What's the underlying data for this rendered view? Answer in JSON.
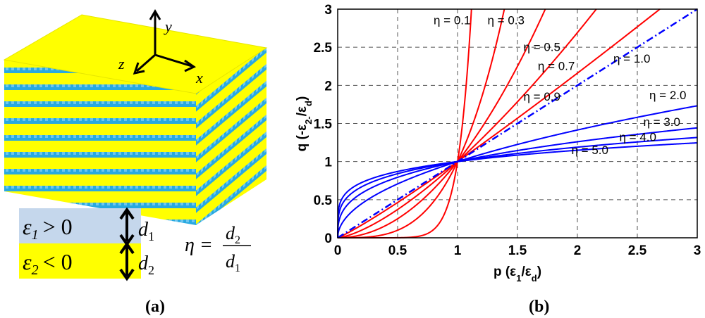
{
  "panel_a": {
    "axes": {
      "y": "y",
      "z": "z",
      "x": "x"
    },
    "layer1": {
      "eps": "ε",
      "sub": "1",
      "rel": "> 0",
      "d": "d",
      "dsub": "1"
    },
    "layer2": {
      "eps": "ε",
      "sub": "2",
      "rel": "< 0",
      "d": "d",
      "dsub": "2"
    },
    "eta": {
      "lhs": "η =",
      "num": "d",
      "num_sub": "2",
      "den": "d",
      "den_sub": "1"
    },
    "label": "(a)",
    "colors": {
      "yellow": "#ffff00",
      "blue": "#29a9e0",
      "light_blue": "#c5d7ec"
    }
  },
  "panel_label_b": "(b)",
  "chart_data": {
    "type": "line",
    "xlabel": "p (ε1/εd)",
    "ylabel": "q (-ε2-/εd)",
    "xlim": [
      0,
      3
    ],
    "ylim": [
      0,
      3
    ],
    "xticks": [
      "0",
      "0.5",
      "1",
      "1.5",
      "2",
      "2.5",
      "3"
    ],
    "yticks": [
      "0",
      "0.5",
      "1",
      "1.5",
      "2",
      "2.5",
      "3"
    ],
    "grid": "dashed",
    "relation": "q = p^(1/η)",
    "series": [
      {
        "name": "η = 0.1",
        "eta": 0.1,
        "color": "#ff0000"
      },
      {
        "name": "η = 0.3",
        "eta": 0.3,
        "color": "#ff0000"
      },
      {
        "name": "η = 0.5",
        "eta": 0.5,
        "color": "#ff0000"
      },
      {
        "name": "η = 0.7",
        "eta": 0.7,
        "color": "#ff0000"
      },
      {
        "name": "η = 0.9",
        "eta": 0.9,
        "color": "#ff0000"
      },
      {
        "name": "η = 1.0",
        "eta": 1.0,
        "color": "#0000ff",
        "style": "dash-dot"
      },
      {
        "name": "η = 2.0",
        "eta": 2.0,
        "color": "#0000ff"
      },
      {
        "name": "η = 3.0",
        "eta": 3.0,
        "color": "#0000ff"
      },
      {
        "name": "η = 4.0",
        "eta": 4.0,
        "color": "#0000ff"
      },
      {
        "name": "η = 5.0",
        "eta": 5.0,
        "color": "#0000ff"
      }
    ],
    "annotations": [
      {
        "text": "η = 0.1",
        "x": 0.8,
        "y": 2.8
      },
      {
        "text": "η = 0.3",
        "x": 1.25,
        "y": 2.8
      },
      {
        "text": "η = 0.5",
        "x": 1.55,
        "y": 2.45
      },
      {
        "text": "η = 0.7",
        "x": 1.67,
        "y": 2.2
      },
      {
        "text": "η = 0.9",
        "x": 1.55,
        "y": 1.8
      },
      {
        "text": "η = 1.0",
        "x": 2.3,
        "y": 2.3
      },
      {
        "text": "η = 2.0",
        "x": 2.6,
        "y": 1.82
      },
      {
        "text": "η = 3.0",
        "x": 2.55,
        "y": 1.47
      },
      {
        "text": "η = 4.0",
        "x": 2.35,
        "y": 1.27
      },
      {
        "text": "η = 5.0",
        "x": 1.95,
        "y": 1.1
      }
    ]
  }
}
